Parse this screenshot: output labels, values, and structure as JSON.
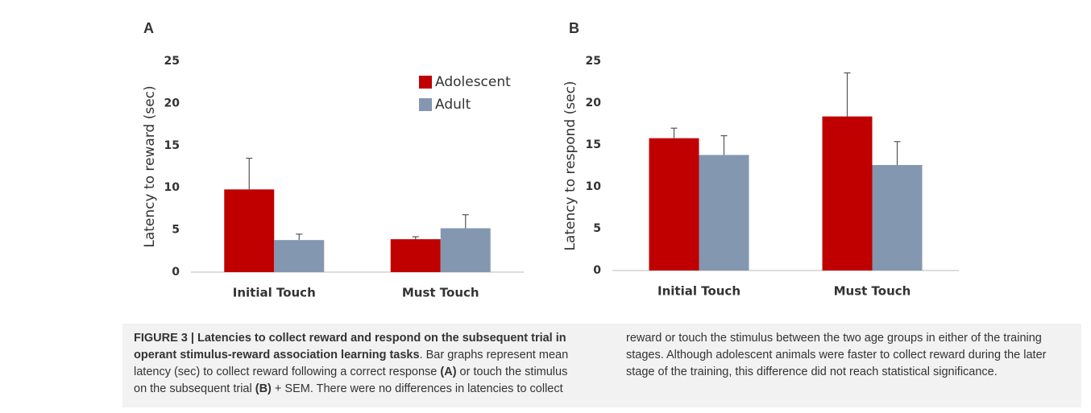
{
  "chart_data": [
    {
      "type": "bar",
      "label": "A",
      "ylabel": "Latency to reward (sec)",
      "categories": [
        "Initial Touch",
        "Must Touch"
      ],
      "series": [
        {
          "name": "Adolescent",
          "color": "#c00000",
          "values": [
            9.8,
            3.9
          ],
          "errors": [
            3.7,
            0.3
          ]
        },
        {
          "name": "Adult",
          "color": "#8497b0",
          "values": [
            3.8,
            5.2
          ],
          "errors": [
            0.7,
            1.6
          ]
        }
      ],
      "ylim": [
        0,
        25
      ],
      "yticks": [
        0,
        5,
        10,
        15,
        20,
        25
      ],
      "grid": false,
      "legend": "upper right"
    },
    {
      "type": "bar",
      "label": "B",
      "ylabel": "Latency to respond (sec)",
      "categories": [
        "Initial Touch",
        "Must Touch"
      ],
      "series": [
        {
          "name": "Adolescent",
          "color": "#c00000",
          "values": [
            15.8,
            18.4
          ],
          "errors": [
            1.2,
            5.2
          ]
        },
        {
          "name": "Adult",
          "color": "#8497b0",
          "values": [
            13.8,
            12.6
          ],
          "errors": [
            2.3,
            2.8
          ]
        }
      ],
      "ylim": [
        0,
        25
      ],
      "yticks": [
        0,
        5,
        10,
        15,
        20,
        25
      ],
      "grid": false,
      "legend": null
    }
  ],
  "caption": {
    "title": "FIGURE 3 | Latencies to collect reward and respond on the subsequent trial in operant stimulus-reward association learning tasks",
    "parts": [
      ". Bar graphs represent mean latency (sec) to collect reward following a correct response ",
      "(A)",
      " or touch the stimulus on the subsequent trial ",
      "(B)",
      " + SEM. There were no differences in latencies to collect reward or touch the stimulus between the two age groups in either of the training stages. Although adolescent animals were faster to collect reward during the later stage of the training, this difference did not reach statistical significance."
    ]
  }
}
